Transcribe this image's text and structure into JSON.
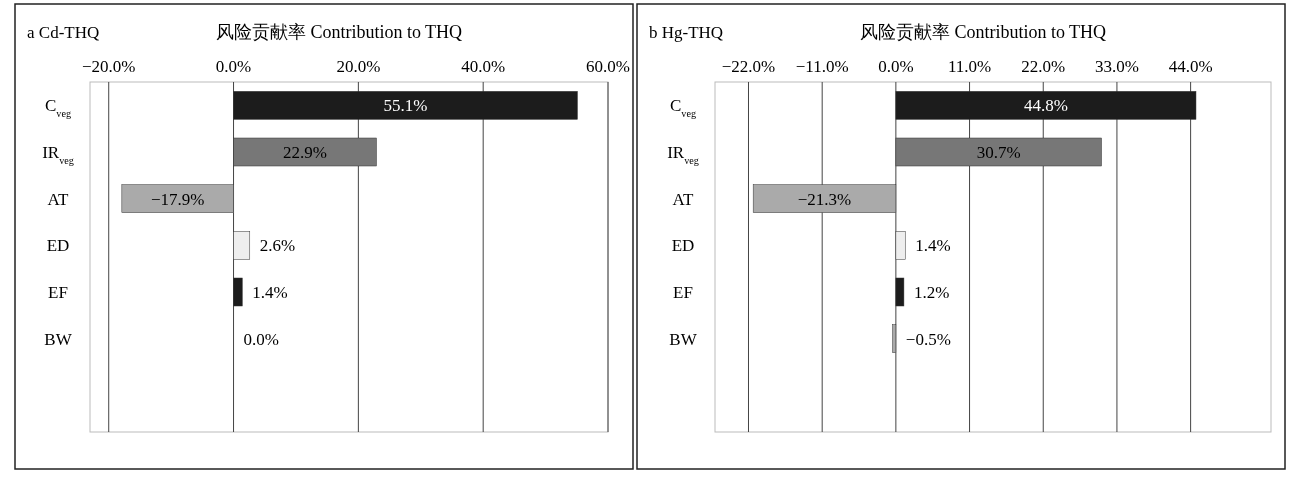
{
  "chart_data": [
    {
      "type": "bar",
      "orientation": "horizontal",
      "title": "a  Cd-THQ",
      "xlabel": "风险贡献率 Contribution to THQ",
      "categories": [
        "C$_{veg}$",
        "IR$_{veg}$",
        "AT",
        "ED",
        "EF",
        "BW"
      ],
      "values": [
        55.1,
        22.9,
        -17.9,
        2.6,
        1.4,
        0.0
      ],
      "colors": [
        "#1c1c1c",
        "#777777",
        "#aaaaaa",
        "#eeeeee",
        "#1c1c1c",
        "#aaaaaa"
      ],
      "value_labels": [
        "55.1%",
        "22.9%",
        "−17.9%",
        "2.6%",
        "1.4%",
        "0.0%"
      ],
      "xlim": [
        -23,
        60
      ],
      "xticks": [
        {
          "value": -20,
          "label": "−20.0%"
        },
        {
          "value": 0,
          "label": "0.0%"
        },
        {
          "value": 20,
          "label": "20.0%"
        },
        {
          "value": 40,
          "label": "40.0%"
        },
        {
          "value": 60,
          "label": "60.0%"
        }
      ],
      "grid": "x"
    },
    {
      "type": "bar",
      "orientation": "horizontal",
      "title": "b  Hg-THQ",
      "xlabel": "风险贡献率 Contribution to THQ",
      "categories": [
        "C$_{veg}$",
        "IR$_{veg}$",
        "AT",
        "ED",
        "EF",
        "BW"
      ],
      "values": [
        44.8,
        30.7,
        -21.3,
        1.4,
        1.2,
        -0.5
      ],
      "colors": [
        "#1c1c1c",
        "#777777",
        "#aaaaaa",
        "#eeeeee",
        "#1c1c1c",
        "#aaaaaa"
      ],
      "value_labels": [
        "44.8%",
        "30.7%",
        "−21.3%",
        "1.4%",
        "1.2%",
        "−0.5%"
      ],
      "xlim": [
        -27,
        56
      ],
      "xticks": [
        {
          "value": -22,
          "label": "−22.0%"
        },
        {
          "value": -11,
          "label": "−11.0%"
        },
        {
          "value": 0,
          "label": "0.0%"
        },
        {
          "value": 11,
          "label": "11.0%"
        },
        {
          "value": 22,
          "label": "22.0%"
        },
        {
          "value": 33,
          "label": "33.0%"
        },
        {
          "value": 44,
          "label": "44.0%"
        }
      ],
      "grid": "x"
    }
  ]
}
